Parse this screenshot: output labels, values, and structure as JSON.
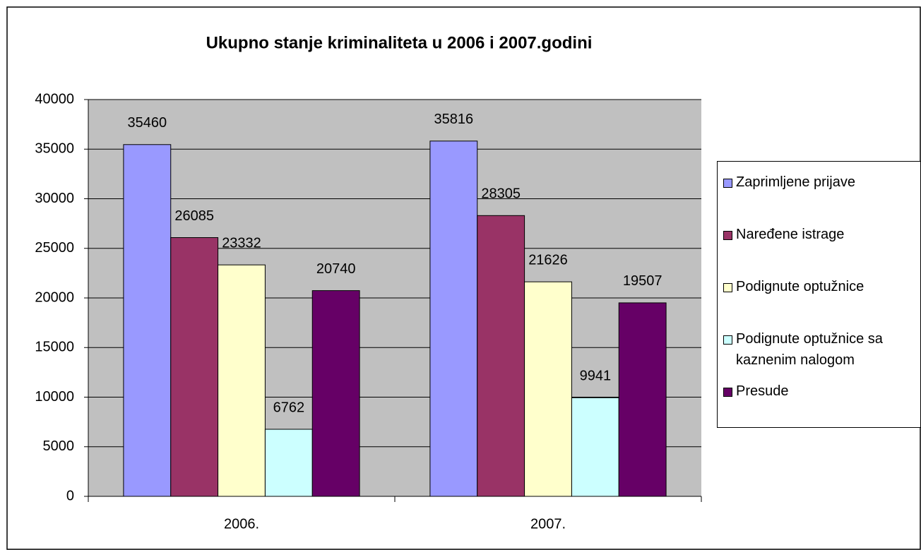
{
  "chart_data": {
    "type": "bar",
    "title": "Ukupno stanje kriminaliteta u 2006 i 2007.godini",
    "categories": [
      "2006.",
      "2007."
    ],
    "series": [
      {
        "name": "Zaprimljene prijave",
        "color": "#9999ff",
        "values": [
          35460,
          35816
        ]
      },
      {
        "name": "Naređene istrage",
        "color": "#993366",
        "values": [
          26085,
          28305
        ]
      },
      {
        "name": "Podignute optužnice",
        "color": "#ffffcc",
        "values": [
          23332,
          21626
        ]
      },
      {
        "name": "Podignute optužnice sa kaznenim nalogom",
        "color": "#ccffff",
        "values": [
          6762,
          9941
        ]
      },
      {
        "name": "Presude",
        "color": "#660066",
        "values": [
          20740,
          19507
        ]
      }
    ],
    "ylim": [
      0,
      40000
    ],
    "yticks": [
      0,
      5000,
      10000,
      15000,
      20000,
      25000,
      30000,
      35000,
      40000
    ],
    "grid": true,
    "legend": "right"
  }
}
